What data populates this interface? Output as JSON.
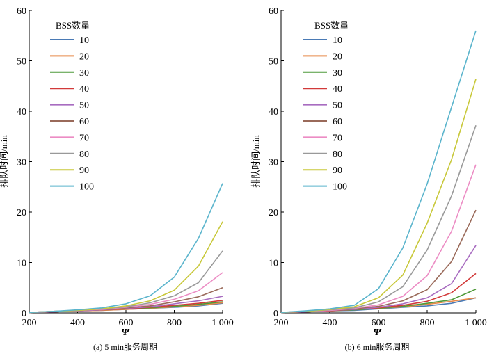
{
  "chart_data": [
    {
      "type": "line",
      "caption": "(a) 5 min服务周期",
      "xlabel": "Ψ",
      "ylabel": "排队时间/min",
      "xlim": [
        200,
        1000
      ],
      "ylim": [
        0,
        60
      ],
      "xticks": [
        200,
        400,
        600,
        800,
        1000
      ],
      "xtick_labels": [
        "200",
        "400",
        "600",
        "800",
        "1 000"
      ],
      "yticks": [
        0,
        10,
        20,
        30,
        40,
        50,
        60
      ],
      "ytick_labels": [
        "0",
        "10",
        "20",
        "30",
        "40",
        "50",
        "60"
      ],
      "legend_title": "BSS数量",
      "legend_position": "top-left",
      "x": [
        200,
        300,
        400,
        500,
        600,
        700,
        800,
        900,
        1000
      ],
      "series": [
        {
          "name": "10",
          "color": "#4a7ab5",
          "values": [
            0.1,
            0.2,
            0.4,
            0.5,
            0.7,
            0.9,
            1.1,
            1.4,
            1.9
          ]
        },
        {
          "name": "20",
          "color": "#e88a4a",
          "values": [
            0.1,
            0.2,
            0.4,
            0.5,
            0.7,
            0.9,
            1.2,
            1.5,
            2.0
          ]
        },
        {
          "name": "30",
          "color": "#4f9a3a",
          "values": [
            0.1,
            0.2,
            0.4,
            0.6,
            0.8,
            1.0,
            1.3,
            1.7,
            2.2
          ]
        },
        {
          "name": "40",
          "color": "#d23a3a",
          "values": [
            0.1,
            0.2,
            0.4,
            0.6,
            0.8,
            1.1,
            1.5,
            1.9,
            2.5
          ]
        },
        {
          "name": "50",
          "color": "#a86cc0",
          "values": [
            0.1,
            0.2,
            0.4,
            0.6,
            0.9,
            1.2,
            1.8,
            2.4,
            3.3
          ]
        },
        {
          "name": "60",
          "color": "#9a6a5a",
          "values": [
            0.1,
            0.3,
            0.5,
            0.7,
            1.0,
            1.4,
            2.2,
            3.2,
            5.0
          ]
        },
        {
          "name": "70",
          "color": "#ec8cc4",
          "values": [
            0.1,
            0.3,
            0.5,
            0.7,
            1.1,
            1.7,
            2.7,
            4.4,
            8.0
          ]
        },
        {
          "name": "80",
          "color": "#999999",
          "values": [
            0.1,
            0.3,
            0.5,
            0.8,
            1.2,
            2.0,
            3.4,
            6.0,
            12.3
          ]
        },
        {
          "name": "90",
          "color": "#c8c83a",
          "values": [
            0.1,
            0.3,
            0.5,
            0.8,
            1.4,
            2.4,
            4.5,
            9.3,
            18.1
          ]
        },
        {
          "name": "100",
          "color": "#5ab4cc",
          "values": [
            0.1,
            0.3,
            0.6,
            1.0,
            1.8,
            3.4,
            7.1,
            14.8,
            25.7
          ]
        }
      ]
    },
    {
      "type": "line",
      "caption": "(b) 6 min服务周期",
      "xlabel": "Ψ",
      "ylabel": "排队时间/min",
      "xlim": [
        200,
        1000
      ],
      "ylim": [
        0,
        60
      ],
      "xticks": [
        200,
        400,
        600,
        800,
        1000
      ],
      "xtick_labels": [
        "200",
        "400",
        "600",
        "800",
        "1 000"
      ],
      "yticks": [
        0,
        10,
        20,
        30,
        40,
        50,
        60
      ],
      "ytick_labels": [
        "0",
        "10",
        "20",
        "30",
        "40",
        "50",
        "60"
      ],
      "legend_title": "BSS数量",
      "legend_position": "top-left",
      "x": [
        200,
        300,
        400,
        500,
        600,
        700,
        800,
        900,
        1000
      ],
      "series": [
        {
          "name": "10",
          "color": "#4a7ab5",
          "values": [
            0.1,
            0.2,
            0.4,
            0.5,
            0.8,
            1.1,
            1.4,
            1.9,
            3.0
          ]
        },
        {
          "name": "20",
          "color": "#e88a4a",
          "values": [
            0.1,
            0.2,
            0.4,
            0.6,
            0.9,
            1.2,
            1.7,
            2.3,
            3.0
          ]
        },
        {
          "name": "30",
          "color": "#4f9a3a",
          "values": [
            0.1,
            0.2,
            0.4,
            0.6,
            0.9,
            1.3,
            1.9,
            2.6,
            4.7
          ]
        },
        {
          "name": "40",
          "color": "#d23a3a",
          "values": [
            0.1,
            0.2,
            0.4,
            0.7,
            1.0,
            1.5,
            2.3,
            4.0,
            7.8
          ]
        },
        {
          "name": "50",
          "color": "#a86cc0",
          "values": [
            0.1,
            0.2,
            0.5,
            0.7,
            1.1,
            1.8,
            3.0,
            5.8,
            13.4
          ]
        },
        {
          "name": "60",
          "color": "#9a6a5a",
          "values": [
            0.1,
            0.3,
            0.5,
            0.8,
            1.3,
            2.4,
            4.6,
            10.2,
            20.4
          ]
        },
        {
          "name": "70",
          "color": "#ec8cc4",
          "values": [
            0.1,
            0.3,
            0.5,
            0.9,
            1.6,
            3.3,
            7.4,
            16.2,
            29.4
          ]
        },
        {
          "name": "80",
          "color": "#999999",
          "values": [
            0.1,
            0.3,
            0.6,
            1.0,
            2.2,
            5.2,
            12.5,
            23.2,
            37.2
          ]
        },
        {
          "name": "90",
          "color": "#c8c83a",
          "values": [
            0.1,
            0.3,
            0.7,
            1.2,
            3.0,
            7.5,
            17.8,
            30.4,
            46.4
          ]
        },
        {
          "name": "100",
          "color": "#5ab4cc",
          "values": [
            0.1,
            0.4,
            0.8,
            1.5,
            4.8,
            12.9,
            25.6,
            40.8,
            56.0
          ]
        }
      ]
    }
  ]
}
